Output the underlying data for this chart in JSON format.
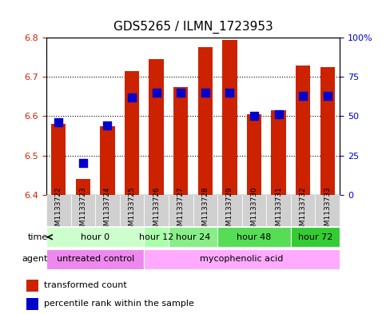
{
  "title": "GDS5265 / ILMN_1723953",
  "samples": [
    "GSM1133722",
    "GSM1133723",
    "GSM1133724",
    "GSM1133725",
    "GSM1133726",
    "GSM1133727",
    "GSM1133728",
    "GSM1133729",
    "GSM1133730",
    "GSM1133731",
    "GSM1133732",
    "GSM1133733"
  ],
  "transformed_counts": [
    6.58,
    6.44,
    6.575,
    6.715,
    6.745,
    6.675,
    6.775,
    6.795,
    6.605,
    6.615,
    6.73,
    6.725
  ],
  "percentile_ranks": [
    46,
    20,
    44,
    62,
    65,
    65,
    65,
    65,
    50,
    51,
    63,
    63
  ],
  "ylim_left": [
    6.4,
    6.8
  ],
  "ylim_right": [
    0,
    100
  ],
  "yticks_left": [
    6.4,
    6.5,
    6.6,
    6.7,
    6.8
  ],
  "yticks_right": [
    0,
    25,
    50,
    75,
    100
  ],
  "ytick_labels_right": [
    "0",
    "25",
    "50",
    "75",
    "100%"
  ],
  "bar_color": "#CC2200",
  "dot_color": "#0000CC",
  "bar_bottom": 6.4,
  "bar_width": 0.6,
  "dot_size": 50,
  "time_groups": [
    {
      "label": "hour 0",
      "start": 0,
      "end": 3,
      "color": "#ccffcc"
    },
    {
      "label": "hour 12",
      "start": 4,
      "end": 4,
      "color": "#aaffaa"
    },
    {
      "label": "hour 24",
      "start": 5,
      "end": 6,
      "color": "#88ee88"
    },
    {
      "label": "hour 48",
      "start": 7,
      "end": 9,
      "color": "#55dd55"
    },
    {
      "label": "hour 72",
      "start": 10,
      "end": 11,
      "color": "#33cc33"
    }
  ],
  "agent_groups": [
    {
      "label": "untreated control",
      "start": 0,
      "end": 3,
      "color": "#ee88ee"
    },
    {
      "label": "mycophenolic acid",
      "start": 4,
      "end": 11,
      "color": "#ffaaff"
    }
  ],
  "legend_items": [
    {
      "label": "transformed count",
      "color": "#CC2200"
    },
    {
      "label": "percentile rank within the sample",
      "color": "#0000CC"
    }
  ],
  "grid_color": "black",
  "grid_linestyle": "dotted",
  "ax_bg": "#ffffff",
  "sample_bg": "#d0d0d0"
}
